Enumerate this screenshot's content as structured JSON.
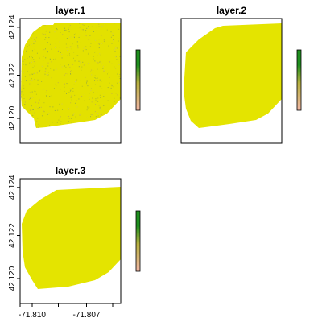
{
  "chart_data": [
    {
      "type": "heatmap",
      "title": "layer.1",
      "fill": "#e3e100",
      "speckle": true,
      "y_ticks": [
        "42.120",
        "42.122",
        "42.124"
      ],
      "x_ticks": [],
      "legend": "right",
      "legend_colors": [
        "#1f8f1f",
        "#b7b040",
        "#f2b7a6"
      ]
    },
    {
      "type": "heatmap",
      "title": "layer.2",
      "fill": "#e4e400",
      "speckle": false,
      "y_ticks": [],
      "x_ticks": [],
      "legend": "right",
      "legend_colors": [
        "#1f8f1f",
        "#b7b040",
        "#f2b7a6"
      ]
    },
    {
      "type": "heatmap",
      "title": "layer.3",
      "fill": "#e4e400",
      "speckle": false,
      "y_ticks": [
        "42.120",
        "42.122",
        "42.124"
      ],
      "x_ticks": [
        "-71.810",
        "-71.807"
      ],
      "legend": "right",
      "legend_colors": [
        "#1f8f1f",
        "#b7b040",
        "#f2b7a6"
      ]
    }
  ]
}
